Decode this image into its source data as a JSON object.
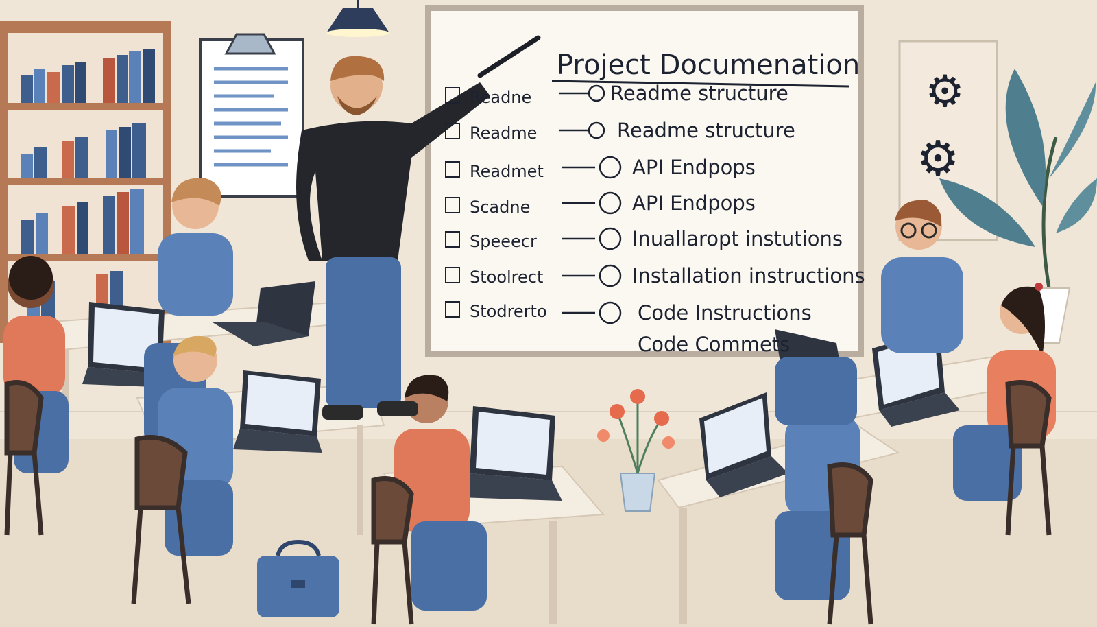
{
  "whiteboard": {
    "title": "Project Documenation",
    "left_column": [
      "Readne",
      "Readme",
      "Readmet",
      "Scadne",
      "Speeecr",
      "Stoolrect",
      "Stodrerto"
    ],
    "right_column": [
      "Readme  structure",
      "Readme structure",
      "API Endpops",
      "API Endpops",
      "Inuallaropt instutions",
      "Installation instructions",
      "Code  Instructions",
      "Code Commets"
    ]
  },
  "wall_icons": [
    "gear-icon",
    "gear-icon"
  ],
  "colors": {
    "wall": "#efe6d8",
    "whiteboard": "#fbf8f2",
    "whiteboard_frame": "#b9ada0",
    "shirt_blue": "#5b82b8",
    "shirt_orange": "#e0795a",
    "jeans": "#4a6fa5",
    "teacher_shirt": "#24262c",
    "desk": "#f4ede2",
    "wood": "#6b4a3a",
    "plant": "#4f7f8e"
  }
}
